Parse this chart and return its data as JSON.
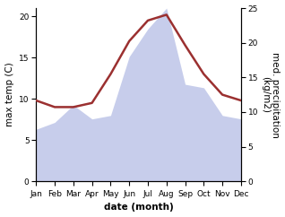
{
  "months": [
    "Jan",
    "Feb",
    "Mar",
    "Apr",
    "May",
    "Jun",
    "Jul",
    "Aug",
    "Sep",
    "Oct",
    "Nov",
    "Dec"
  ],
  "max_temp": [
    9.8,
    9.0,
    9.0,
    9.5,
    13.0,
    17.0,
    19.5,
    20.2,
    16.5,
    13.0,
    10.5,
    9.8
  ],
  "precipitation": [
    7.5,
    8.5,
    11.0,
    9.0,
    9.5,
    18.0,
    22.0,
    25.0,
    14.0,
    13.5,
    9.5,
    9.0
  ],
  "temp_color": "#9b3030",
  "precip_fill_color": "#bdc5e8",
  "temp_ylim": [
    0,
    21
  ],
  "precip_ylim": [
    0,
    25
  ],
  "temp_yticks": [
    0,
    5,
    10,
    15,
    20
  ],
  "precip_yticks": [
    0,
    5,
    10,
    15,
    20,
    25
  ],
  "xlabel": "date (month)",
  "ylabel_left": "max temp (C)",
  "ylabel_right": "med. precipitation\n(kg/m2)",
  "label_fontsize": 7.5,
  "tick_fontsize": 6.5
}
